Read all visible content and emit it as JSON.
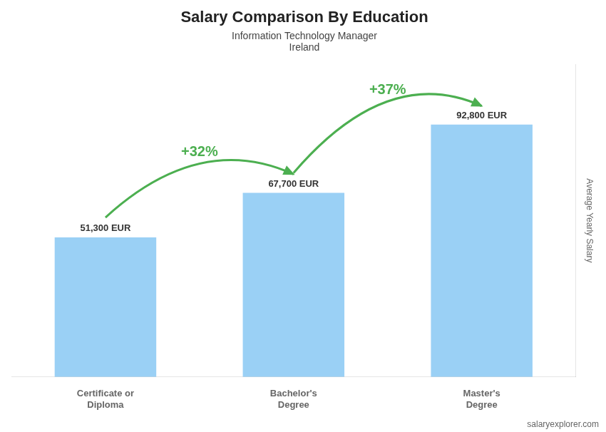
{
  "chart_data": {
    "type": "bar",
    "title": "Salary Comparison By Education",
    "subtitle": [
      "Information Technology Manager",
      "Ireland"
    ],
    "categories": [
      "Certificate or\nDiploma",
      "Bachelor's\nDegree",
      "Master's\nDegree"
    ],
    "values": [
      51300,
      67700,
      92800
    ],
    "value_labels": [
      "51,300 EUR",
      "67,700 EUR",
      "92,800 EUR"
    ],
    "data_labels": true,
    "annotations": [
      "+32%",
      "+37%"
    ],
    "source": "salaryexplorer.com",
    "ylabel": "Average Yearly Salary",
    "ylim": [
      0,
      115000
    ],
    "grid": false,
    "tick_labels": "x"
  }
}
